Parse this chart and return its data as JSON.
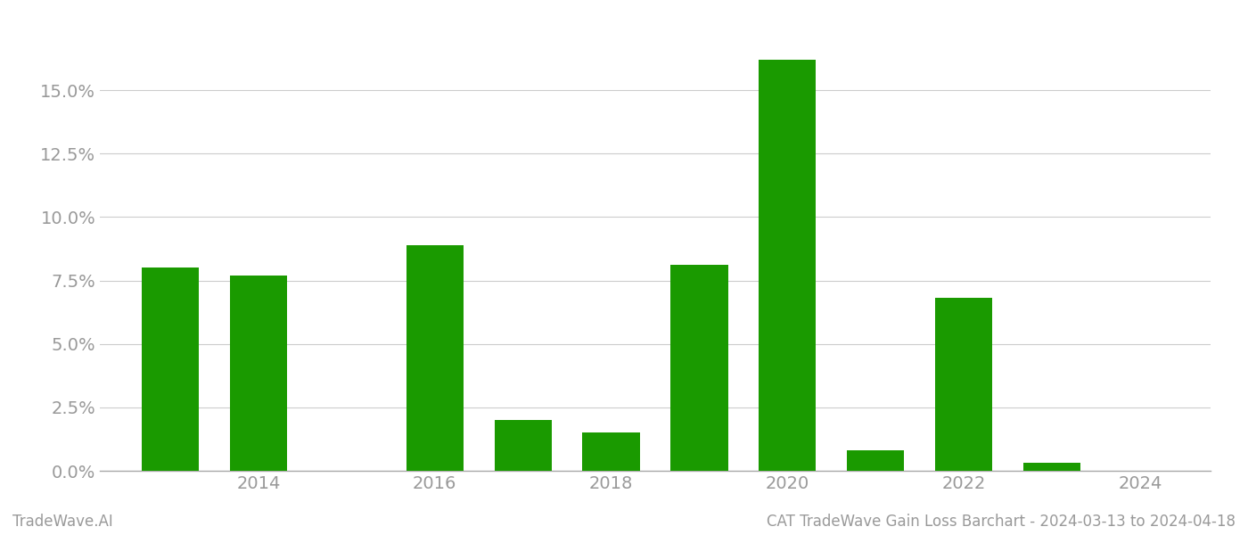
{
  "years": [
    2013,
    2014,
    2015,
    2016,
    2017,
    2018,
    2019,
    2020,
    2021,
    2022,
    2023
  ],
  "values": [
    0.08,
    0.077,
    0.0,
    0.089,
    0.02,
    0.015,
    0.081,
    0.162,
    0.008,
    0.068,
    0.003
  ],
  "bar_color": "#1a9a00",
  "background_color": "#ffffff",
  "grid_color": "#cccccc",
  "axis_color": "#aaaaaa",
  "tick_label_color": "#999999",
  "ylim": [
    0,
    0.175
  ],
  "yticks": [
    0.0,
    0.025,
    0.05,
    0.075,
    0.1,
    0.125,
    0.15
  ],
  "xticks": [
    2014,
    2016,
    2018,
    2020,
    2022,
    2024
  ],
  "xtick_labels": [
    "2014",
    "2016",
    "2018",
    "2020",
    "2022",
    "2024"
  ],
  "xlim_left": 2012.2,
  "xlim_right": 2024.8,
  "footer_left": "TradeWave.AI",
  "footer_right": "CAT TradeWave Gain Loss Barchart - 2024-03-13 to 2024-04-18",
  "bar_width": 0.65,
  "tick_fontsize": 14,
  "footer_fontsize": 12
}
